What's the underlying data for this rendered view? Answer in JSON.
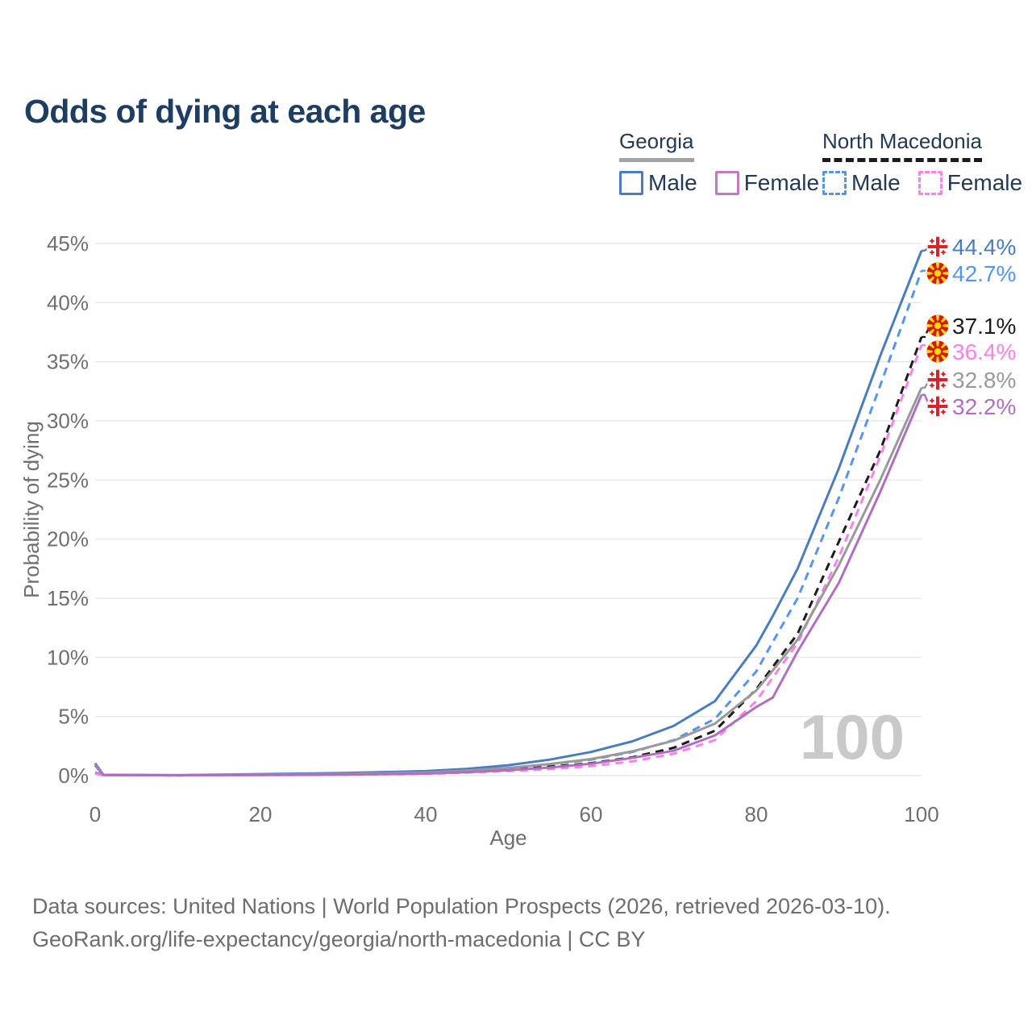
{
  "title": "Odds of dying at each age",
  "legend": {
    "georgia": {
      "name": "Georgia",
      "male_label": "Male",
      "female_label": "Female",
      "underline_color": "#a3a3a3",
      "male_color": "#4a7dc0",
      "female_color": "#bd7cbd"
    },
    "north_macedonia": {
      "name": "North Macedonia",
      "male_label": "Male",
      "female_label": "Female",
      "underline_color": "#1c1c1c",
      "male_color": "#5694f2",
      "female_color": "#fb80ea"
    }
  },
  "chart_data": {
    "type": "line",
    "title": "Odds of dying at each age",
    "xlabel": "Age",
    "ylabel": "Probability of dying",
    "xlim": [
      0,
      100
    ],
    "ylim": [
      0,
      45
    ],
    "grid": true,
    "x_tick_values": [
      0,
      20,
      40,
      60,
      80,
      100
    ],
    "x_tick_labels": [
      "0",
      "20",
      "40",
      "60",
      "80",
      "100"
    ],
    "y_tick_values": [
      0,
      5,
      10,
      15,
      20,
      25,
      30,
      35,
      40,
      45
    ],
    "y_tick_labels": [
      "0%",
      "5%",
      "10%",
      "15%",
      "20%",
      "25%",
      "30%",
      "35%",
      "40%",
      "45%"
    ],
    "watermark": "100",
    "ages": [
      0,
      1,
      10,
      20,
      30,
      40,
      45,
      50,
      55,
      60,
      65,
      70,
      75,
      80,
      82,
      85,
      90,
      95,
      100
    ],
    "series": [
      {
        "id": "georgia-male",
        "name": "Georgia Male",
        "country": "Georgia",
        "sex": "Male",
        "color": "#4a7dc0",
        "dash": "solid",
        "end_label": "44.4%",
        "flag": "georgia",
        "values": [
          1.05,
          0.07,
          0.04,
          0.13,
          0.22,
          0.38,
          0.57,
          0.88,
          1.35,
          2.0,
          2.9,
          4.2,
          6.3,
          11.0,
          13.5,
          17.5,
          26.0,
          35.5,
          44.4
        ]
      },
      {
        "id": "north-macedonia-male",
        "name": "North Macedonia Male",
        "country": "North Macedonia",
        "sex": "Male",
        "color": "#5694f2",
        "dash": "dashed",
        "end_label": "42.7%",
        "flag": "north-macedonia",
        "values": [
          0.25,
          0.05,
          0.03,
          0.09,
          0.13,
          0.26,
          0.4,
          0.65,
          0.95,
          1.35,
          2.0,
          3.0,
          4.8,
          8.8,
          11.3,
          15.0,
          23.5,
          33.0,
          42.7
        ]
      },
      {
        "id": "north-macedonia-both",
        "name": "North Macedonia Both Sexes",
        "country": "North Macedonia",
        "sex": "Both",
        "color": "#1c1c1c",
        "dash": "dashed",
        "end_label": "37.1%",
        "flag": "north-macedonia",
        "values": [
          0.2,
          0.04,
          0.025,
          0.07,
          0.1,
          0.2,
          0.32,
          0.5,
          0.75,
          1.05,
          1.55,
          2.35,
          3.8,
          7.3,
          9.2,
          12.0,
          19.8,
          27.5,
          37.1
        ]
      },
      {
        "id": "north-macedonia-female",
        "name": "North Macedonia Female",
        "country": "North Macedonia",
        "sex": "Female",
        "color": "#fb80ea",
        "dash": "dashed",
        "end_label": "36.4%",
        "flag": "north-macedonia",
        "values": [
          0.18,
          0.03,
          0.02,
          0.045,
          0.07,
          0.15,
          0.25,
          0.38,
          0.55,
          0.8,
          1.2,
          1.85,
          3.0,
          6.3,
          8.3,
          11.2,
          18.5,
          27.0,
          36.4
        ]
      },
      {
        "id": "georgia-both",
        "name": "Georgia Both Sexes",
        "country": "Georgia",
        "sex": "Both",
        "color": "#999999",
        "dash": "solid",
        "end_label": "32.8%",
        "flag": "georgia",
        "values": [
          0.95,
          0.06,
          0.03,
          0.09,
          0.14,
          0.26,
          0.42,
          0.65,
          0.98,
          1.4,
          2.05,
          2.95,
          4.4,
          7.2,
          8.9,
          11.5,
          17.8,
          25.0,
          32.8
        ]
      },
      {
        "id": "georgia-female",
        "name": "Georgia Female",
        "country": "Georgia",
        "sex": "Female",
        "color": "#ae6fc0",
        "dash": "solid",
        "end_label": "32.2%",
        "flag": "georgia",
        "values": [
          0.85,
          0.05,
          0.025,
          0.05,
          0.09,
          0.17,
          0.29,
          0.46,
          0.68,
          1.0,
          1.5,
          2.1,
          3.4,
          5.8,
          6.6,
          10.5,
          16.3,
          24.0,
          32.2
        ]
      }
    ],
    "flag_colors": {
      "georgia_red": "#d8232a",
      "georgia_white": "#ffffff",
      "mk_red": "#d31b10",
      "mk_yellow": "#ffd813"
    },
    "colors": {
      "gridline": "#e7e7e7",
      "axis_text": "#6f6f6f",
      "watermark": "#c9c9c9"
    }
  },
  "footer": {
    "line1": "Data sources: United Nations | World Population Prospects (2026, retrieved 2026-03-10).",
    "line2": "GeoRank.org/life-expectancy/georgia/north-macedonia | CC BY"
  }
}
